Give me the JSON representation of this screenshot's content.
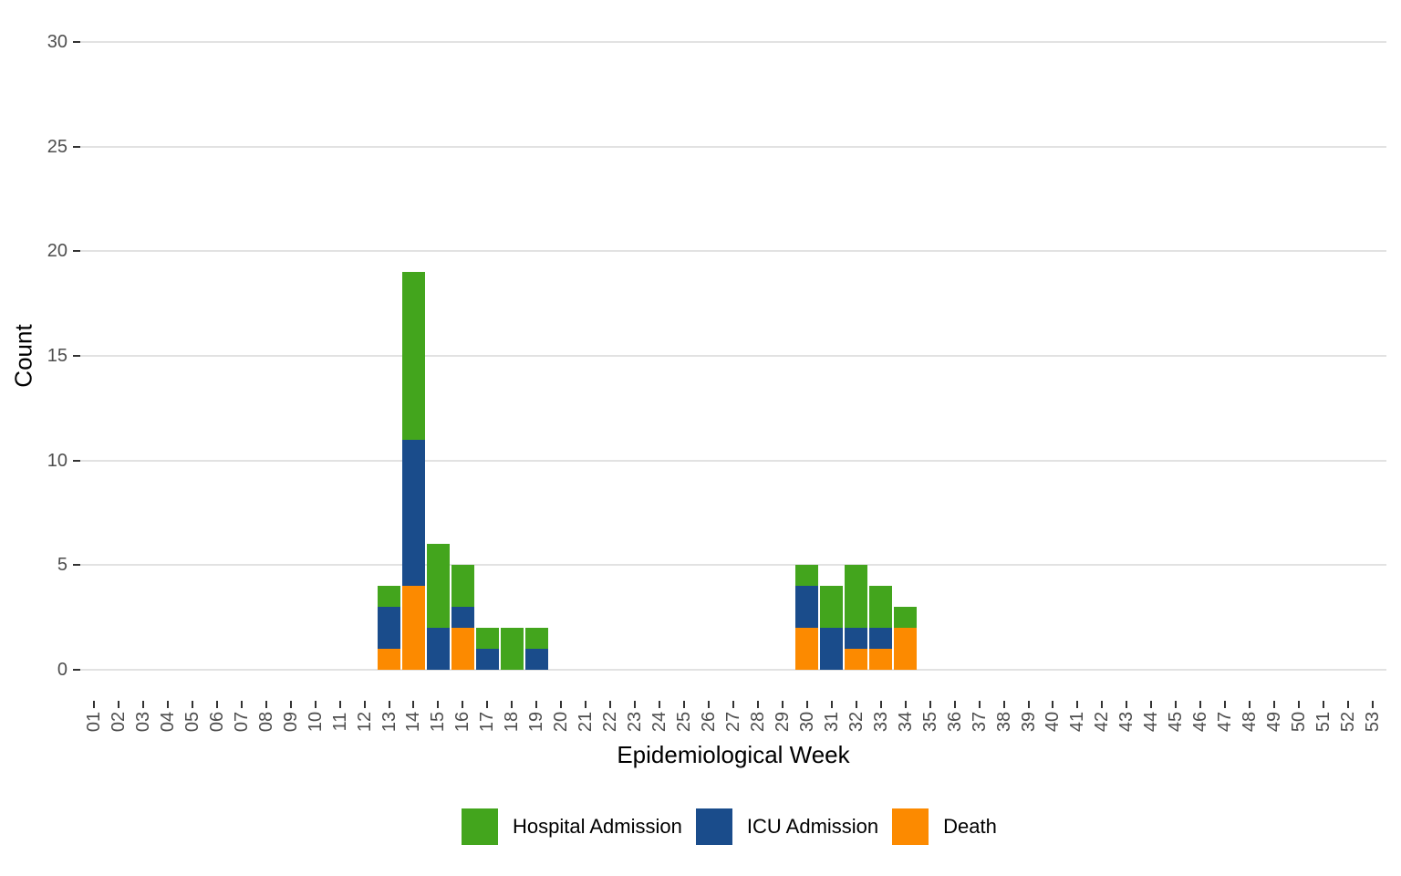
{
  "chart_data": {
    "type": "bar",
    "stacked": true,
    "title": "",
    "xlabel": "Epidemiological Week",
    "ylabel": "Count",
    "x_categories": [
      "01",
      "02",
      "03",
      "04",
      "05",
      "06",
      "07",
      "08",
      "09",
      "10",
      "11",
      "12",
      "13",
      "14",
      "15",
      "16",
      "17",
      "18",
      "19",
      "20",
      "21",
      "22",
      "23",
      "24",
      "25",
      "26",
      "27",
      "28",
      "29",
      "30",
      "31",
      "32",
      "33",
      "34",
      "35",
      "36",
      "37",
      "38",
      "39",
      "40",
      "41",
      "42",
      "43",
      "44",
      "45",
      "46",
      "47",
      "48",
      "49",
      "50",
      "51",
      "52",
      "53"
    ],
    "y_ticks": [
      0,
      5,
      10,
      15,
      20,
      25,
      30
    ],
    "ylim": [
      0,
      30
    ],
    "grid": "horizontal-major-only",
    "legend_position": "bottom",
    "stack_order_bottom_to_top": [
      "Death",
      "ICU Admission",
      "Hospital Admission"
    ],
    "series": [
      {
        "name": "Hospital Admission",
        "color": "#43A51D",
        "week_values": {
          "13": 1,
          "14": 8,
          "15": 4,
          "16": 2,
          "17": 1,
          "18": 2,
          "19": 1,
          "30": 1,
          "31": 2,
          "32": 3,
          "33": 2,
          "34": 1
        }
      },
      {
        "name": "ICU Admission",
        "color": "#1A4C8B",
        "week_values": {
          "13": 2,
          "14": 7,
          "15": 2,
          "16": 1,
          "17": 1,
          "19": 1,
          "30": 2,
          "31": 2,
          "32": 1,
          "33": 1
        }
      },
      {
        "name": "Death",
        "color": "#FC8A00",
        "week_values": {
          "13": 1,
          "14": 4,
          "16": 2,
          "30": 2,
          "32": 1,
          "33": 1,
          "34": 2
        }
      }
    ],
    "totals_by_week": {
      "13": 4,
      "14": 19,
      "15": 6,
      "16": 5,
      "17": 2,
      "18": 2,
      "19": 2,
      "30": 5,
      "31": 4,
      "32": 5,
      "33": 4,
      "34": 3
    },
    "style": {
      "background": "#FFFFFF",
      "gridline_color": "#E2E2E2",
      "tick_color": "#333333",
      "axis_text_color": "#4D4D4D",
      "axis_title_color": "#000000"
    }
  }
}
